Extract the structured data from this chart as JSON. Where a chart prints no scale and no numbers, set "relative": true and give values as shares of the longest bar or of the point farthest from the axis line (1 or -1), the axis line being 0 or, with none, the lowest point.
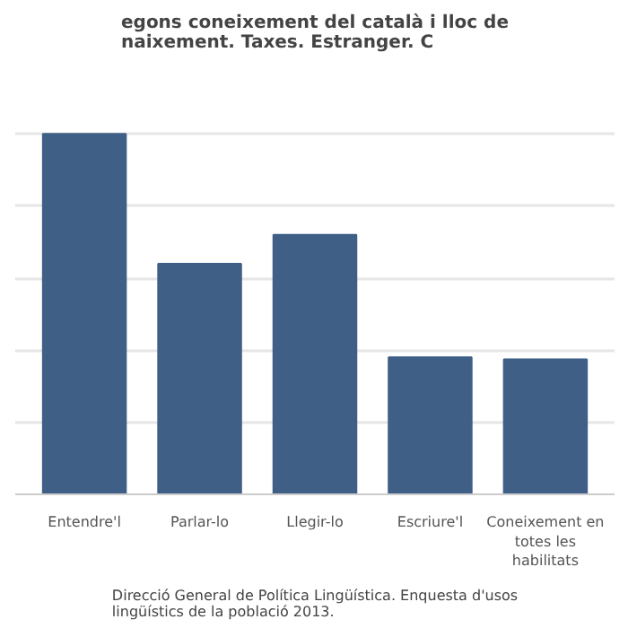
{
  "chart_data": {
    "type": "bar",
    "title": "egons coneixement del català i lloc de naixement. Taxes. Estranger. C",
    "categories": [
      "Entendre'l",
      "Parlar-lo",
      "Llegir-lo",
      "Escriure'l",
      "Coneixement en totes les habilitats"
    ],
    "values": [
      1,
      0.64,
      0.72,
      0.38,
      0.375
    ],
    "color": "#3f5f86",
    "relative": true,
    "grid": "y",
    "annotations": [
      "Direcció General de Política Lingüística. Enquesta d'usos lingüístics de la població 2013."
    ]
  }
}
